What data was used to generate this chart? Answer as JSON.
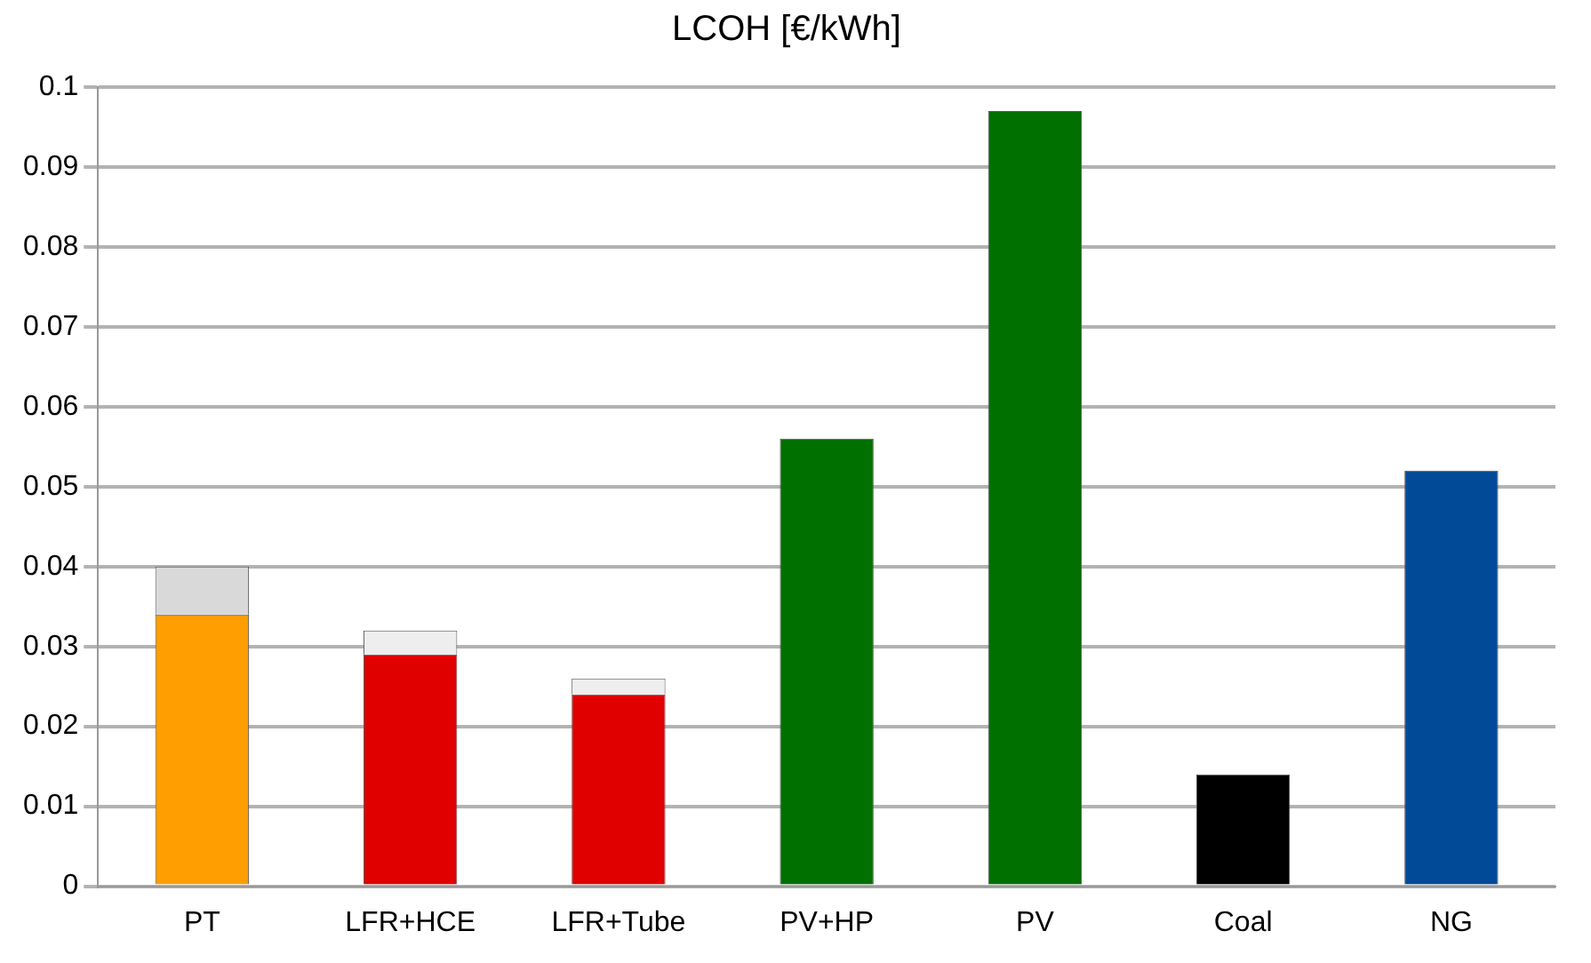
{
  "chart_data": {
    "type": "bar",
    "title": "LCOH [€/kWh]",
    "stacked": true,
    "categories": [
      "PT",
      "LFR+HCE",
      "LFR+Tube",
      "PV+HP",
      "PV",
      "Coal",
      "NG"
    ],
    "series": [
      {
        "colors": [
          "#ff9e00",
          "#e00000",
          "#e00000",
          "#007000",
          "#007000",
          "#000000",
          "#004a98"
        ],
        "values": [
          0.034,
          0.029,
          0.024,
          0.056,
          0.097,
          0.014,
          0.052
        ]
      },
      {
        "colors": [
          "#d9d9d9",
          "#eeeeee",
          "#eeeeee",
          "#d9d9d9",
          "#d9d9d9",
          "#d9d9d9",
          "#d9d9d9"
        ],
        "values": [
          0.006,
          0.003,
          0.002,
          null,
          null,
          null,
          null
        ]
      }
    ],
    "ylim": [
      0,
      0.1
    ],
    "yticks": [
      0,
      0.01,
      0.02,
      0.03,
      0.04,
      0.05,
      0.06,
      0.07,
      0.08,
      0.09,
      0.1
    ],
    "grid": "y",
    "legend": false
  }
}
